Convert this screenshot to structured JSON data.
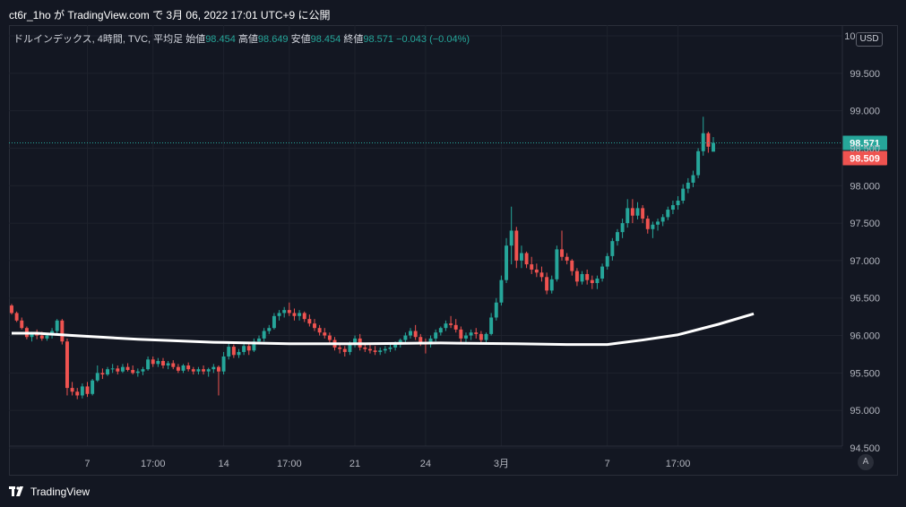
{
  "header": {
    "publish_line": "ct6r_1ho が TradingView.com で 3月 06, 2022 17:01 UTC+9 に公開"
  },
  "legend": {
    "symbol": "ドルインデックス, 4時間, TVC, 平均足",
    "open_label": "始値",
    "open_value": "98.454",
    "high_label": "高値",
    "high_value": "98.649",
    "low_label": "安値",
    "low_value": "98.454",
    "close_label": "終値",
    "close_value": "98.571",
    "change": "−0.043 (−0.04%)"
  },
  "price_axis": {
    "currency": "USD",
    "ticks": [
      "100.000",
      "99.500",
      "99.000",
      "98.500",
      "98.000",
      "97.500",
      "97.000",
      "96.500",
      "96.000",
      "95.500",
      "95.000",
      "94.500"
    ],
    "last_price_label": "98.571",
    "second_price_label": "98.509",
    "scale_button": "A"
  },
  "time_axis": {
    "ticks": [
      "7",
      "17:00",
      "14",
      "17:00",
      "21",
      "24",
      "3月",
      "7",
      "17:00"
    ]
  },
  "footer": {
    "brand": "TradingView"
  },
  "colors": {
    "up": "#26a69a",
    "down": "#ef5350",
    "ma_line": "#ffffff",
    "background": "#131722",
    "grid": "#2a2e39",
    "last_price_line": "#26a69a"
  },
  "chart_data": {
    "type": "candlestick",
    "title": "ドルインデックス, 4時間, TVC, 平均足",
    "ylim": [
      94.5,
      100.0
    ],
    "y_ticks": [
      100.0,
      99.5,
      99.0,
      98.5,
      98.0,
      97.5,
      97.0,
      96.5,
      96.0,
      95.5,
      95.0,
      94.5
    ],
    "x_tick_labels": [
      "7",
      "17:00",
      "14",
      "17:00",
      "21",
      "24",
      "3月",
      "7",
      "17:00"
    ],
    "last_price": 98.571,
    "grid": true,
    "series": [
      {
        "type": "candlestick",
        "candles": [
          [
            96.4,
            96.42,
            96.28,
            96.3
          ],
          [
            96.3,
            96.32,
            96.18,
            96.2
          ],
          [
            96.2,
            96.24,
            96.08,
            96.1
          ],
          [
            96.1,
            96.12,
            95.95,
            95.98
          ],
          [
            95.98,
            96.05,
            95.92,
            96.02
          ],
          [
            96.02,
            96.08,
            95.95,
            96.0
          ],
          [
            96.0,
            96.05,
            95.93,
            95.96
          ],
          [
            95.96,
            96.02,
            95.93,
            96.0
          ],
          [
            96.0,
            96.1,
            95.96,
            96.06
          ],
          [
            96.06,
            96.22,
            96.02,
            96.2
          ],
          [
            96.2,
            96.22,
            95.88,
            95.92
          ],
          [
            95.92,
            95.96,
            95.2,
            95.3
          ],
          [
            95.3,
            95.38,
            95.2,
            95.25
          ],
          [
            95.25,
            95.3,
            95.15,
            95.2
          ],
          [
            95.2,
            95.36,
            95.16,
            95.32
          ],
          [
            95.32,
            95.38,
            95.18,
            95.22
          ],
          [
            95.22,
            95.42,
            95.2,
            95.4
          ],
          [
            95.4,
            95.6,
            95.38,
            95.5
          ],
          [
            95.5,
            95.56,
            95.42,
            95.48
          ],
          [
            95.48,
            95.58,
            95.46,
            95.55
          ],
          [
            95.55,
            95.62,
            95.5,
            95.56
          ],
          [
            95.56,
            95.6,
            95.48,
            95.52
          ],
          [
            95.52,
            95.62,
            95.5,
            95.58
          ],
          [
            95.58,
            95.63,
            95.52,
            95.54
          ],
          [
            95.54,
            95.6,
            95.48,
            95.5
          ],
          [
            95.5,
            95.56,
            95.45,
            95.52
          ],
          [
            95.52,
            95.58,
            95.47,
            95.55
          ],
          [
            95.55,
            95.72,
            95.53,
            95.68
          ],
          [
            95.68,
            95.72,
            95.58,
            95.62
          ],
          [
            95.62,
            95.7,
            95.58,
            95.66
          ],
          [
            95.66,
            95.7,
            95.56,
            95.6
          ],
          [
            95.6,
            95.66,
            95.55,
            95.63
          ],
          [
            95.63,
            95.67,
            95.55,
            95.58
          ],
          [
            95.58,
            95.62,
            95.5,
            95.53
          ],
          [
            95.53,
            95.62,
            95.5,
            95.6
          ],
          [
            95.6,
            95.64,
            95.52,
            95.55
          ],
          [
            95.55,
            95.58,
            95.48,
            95.52
          ],
          [
            95.52,
            95.58,
            95.48,
            95.55
          ],
          [
            95.55,
            95.6,
            95.48,
            95.52
          ],
          [
            95.52,
            95.57,
            95.45,
            95.55
          ],
          [
            95.55,
            95.62,
            95.5,
            95.58
          ],
          [
            95.58,
            95.6,
            95.2,
            95.52
          ],
          [
            95.52,
            95.78,
            95.48,
            95.72
          ],
          [
            95.72,
            95.9,
            95.68,
            95.85
          ],
          [
            95.85,
            95.88,
            95.7,
            95.74
          ],
          [
            95.74,
            95.82,
            95.7,
            95.78
          ],
          [
            95.78,
            95.9,
            95.74,
            95.86
          ],
          [
            95.86,
            95.9,
            95.74,
            95.8
          ],
          [
            95.8,
            95.96,
            95.78,
            95.92
          ],
          [
            95.92,
            96.0,
            95.88,
            95.96
          ],
          [
            95.96,
            96.1,
            95.92,
            96.06
          ],
          [
            96.06,
            96.14,
            96.02,
            96.1
          ],
          [
            96.1,
            96.3,
            96.08,
            96.26
          ],
          [
            96.26,
            96.34,
            96.2,
            96.3
          ],
          [
            96.3,
            96.38,
            96.24,
            96.34
          ],
          [
            96.34,
            96.44,
            96.26,
            96.3
          ],
          [
            96.3,
            96.36,
            96.2,
            96.26
          ],
          [
            96.26,
            96.34,
            96.2,
            96.3
          ],
          [
            96.3,
            96.32,
            96.18,
            96.22
          ],
          [
            96.22,
            96.28,
            96.12,
            96.16
          ],
          [
            96.16,
            96.22,
            96.06,
            96.1
          ],
          [
            96.1,
            96.14,
            96.0,
            96.04
          ],
          [
            96.04,
            96.1,
            95.96,
            96.0
          ],
          [
            96.0,
            96.04,
            95.9,
            95.94
          ],
          [
            95.94,
            95.98,
            95.8,
            95.84
          ],
          [
            95.84,
            95.9,
            95.76,
            95.82
          ],
          [
            95.82,
            95.86,
            95.72,
            95.78
          ],
          [
            95.78,
            95.92,
            95.74,
            95.88
          ],
          [
            95.88,
            96.0,
            95.84,
            95.96
          ],
          [
            95.96,
            96.02,
            95.8,
            95.84
          ],
          [
            95.84,
            95.9,
            95.78,
            95.82
          ],
          [
            95.82,
            95.88,
            95.76,
            95.8
          ],
          [
            95.8,
            95.86,
            95.74,
            95.78
          ],
          [
            95.78,
            95.84,
            95.74,
            95.8
          ],
          [
            95.8,
            95.86,
            95.76,
            95.82
          ],
          [
            95.82,
            95.88,
            95.78,
            95.84
          ],
          [
            95.84,
            95.92,
            95.8,
            95.88
          ],
          [
            95.88,
            95.96,
            95.84,
            95.94
          ],
          [
            95.94,
            96.04,
            95.9,
            96.0
          ],
          [
            96.0,
            96.1,
            95.96,
            96.06
          ],
          [
            96.06,
            96.14,
            95.94,
            95.98
          ],
          [
            95.98,
            96.02,
            95.86,
            95.9
          ],
          [
            95.9,
            95.96,
            95.76,
            95.88
          ],
          [
            95.88,
            96.0,
            95.84,
            95.96
          ],
          [
            95.96,
            96.08,
            95.92,
            96.04
          ],
          [
            96.04,
            96.12,
            96.0,
            96.1
          ],
          [
            96.1,
            96.2,
            96.06,
            96.16
          ],
          [
            96.16,
            96.26,
            96.1,
            96.14
          ],
          [
            96.14,
            96.22,
            96.04,
            96.08
          ],
          [
            96.08,
            96.12,
            95.9,
            95.96
          ],
          [
            95.96,
            96.04,
            95.9,
            96.0
          ],
          [
            96.0,
            96.08,
            95.94,
            96.04
          ],
          [
            96.04,
            96.1,
            95.96,
            96.02
          ],
          [
            96.02,
            96.06,
            95.9,
            95.94
          ],
          [
            95.94,
            96.04,
            95.9,
            96.02
          ],
          [
            96.02,
            96.3,
            96.0,
            96.24
          ],
          [
            96.24,
            96.5,
            96.2,
            96.44
          ],
          [
            96.44,
            96.8,
            96.4,
            96.74
          ],
          [
            96.74,
            97.3,
            96.7,
            97.2
          ],
          [
            97.2,
            97.72,
            96.95,
            97.4
          ],
          [
            97.4,
            97.45,
            96.9,
            97.0
          ],
          [
            97.0,
            97.2,
            96.9,
            97.1
          ],
          [
            97.1,
            97.12,
            96.9,
            96.95
          ],
          [
            96.95,
            97.05,
            96.82,
            96.88
          ],
          [
            96.88,
            96.96,
            96.78,
            96.84
          ],
          [
            96.84,
            96.92,
            96.72,
            96.78
          ],
          [
            96.78,
            96.84,
            96.55,
            96.6
          ],
          [
            96.6,
            96.8,
            96.56,
            96.75
          ],
          [
            96.75,
            97.2,
            96.72,
            97.15
          ],
          [
            97.15,
            97.4,
            97.0,
            97.05
          ],
          [
            97.05,
            97.1,
            96.95,
            97.0
          ],
          [
            97.0,
            97.02,
            96.8,
            96.86
          ],
          [
            96.86,
            96.9,
            96.66,
            96.72
          ],
          [
            96.72,
            96.86,
            96.68,
            96.82
          ],
          [
            96.82,
            96.88,
            96.68,
            96.74
          ],
          [
            96.74,
            96.8,
            96.62,
            96.7
          ],
          [
            96.7,
            96.8,
            96.62,
            96.76
          ],
          [
            96.76,
            96.96,
            96.72,
            96.92
          ],
          [
            96.92,
            97.1,
            96.88,
            97.06
          ],
          [
            97.06,
            97.3,
            97.0,
            97.26
          ],
          [
            97.26,
            97.42,
            97.2,
            97.38
          ],
          [
            97.38,
            97.56,
            97.3,
            97.5
          ],
          [
            97.5,
            97.82,
            97.44,
            97.7
          ],
          [
            97.7,
            97.82,
            97.5,
            97.6
          ],
          [
            97.6,
            97.78,
            97.55,
            97.7
          ],
          [
            97.7,
            97.74,
            97.5,
            97.56
          ],
          [
            97.56,
            97.6,
            97.36,
            97.42
          ],
          [
            97.42,
            97.52,
            97.3,
            97.48
          ],
          [
            97.48,
            97.56,
            97.4,
            97.52
          ],
          [
            97.52,
            97.62,
            97.46,
            97.58
          ],
          [
            97.58,
            97.72,
            97.54,
            97.68
          ],
          [
            97.68,
            97.8,
            97.62,
            97.74
          ],
          [
            97.74,
            97.86,
            97.68,
            97.8
          ],
          [
            97.8,
            98.02,
            97.76,
            97.96
          ],
          [
            97.96,
            98.1,
            97.9,
            98.04
          ],
          [
            98.04,
            98.2,
            97.98,
            98.14
          ],
          [
            98.14,
            98.5,
            98.1,
            98.46
          ],
          [
            98.46,
            98.92,
            98.4,
            98.7
          ],
          [
            98.7,
            98.72,
            98.44,
            98.52
          ],
          [
            98.454,
            98.649,
            98.454,
            98.571
          ]
        ]
      },
      {
        "type": "line",
        "points": [
          [
            0,
            96.03
          ],
          [
            5,
            96.03
          ],
          [
            12,
            96.0
          ],
          [
            25,
            95.95
          ],
          [
            40,
            95.91
          ],
          [
            55,
            95.89
          ],
          [
            70,
            95.89
          ],
          [
            85,
            95.9
          ],
          [
            100,
            95.89
          ],
          [
            110,
            95.88
          ],
          [
            118,
            95.88
          ],
          [
            125,
            95.94
          ],
          [
            132,
            96.01
          ],
          [
            140,
            96.15
          ],
          [
            147,
            96.29
          ]
        ]
      }
    ]
  }
}
